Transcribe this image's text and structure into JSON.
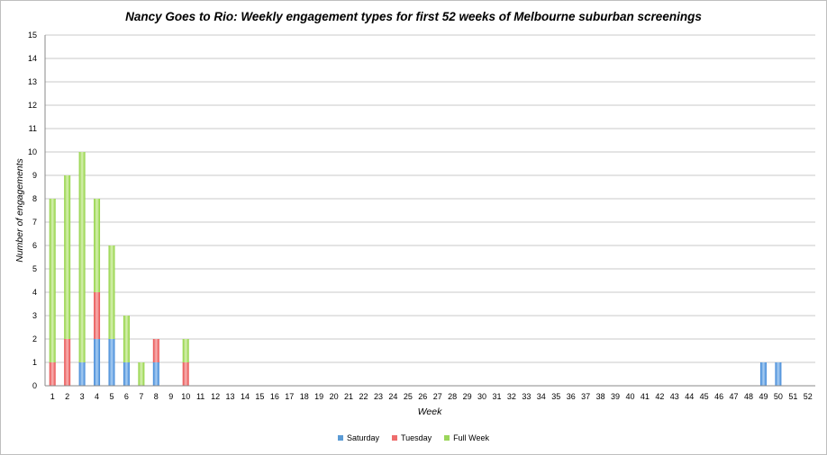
{
  "chart_data": {
    "type": "bar",
    "stacked": true,
    "title": "Nancy Goes to Rio: Weekly engagement types for first 52 weeks of Melbourne suburban screenings",
    "xlabel": "Week",
    "ylabel": "Number of engagements",
    "ylim": [
      0,
      15
    ],
    "yticks": [
      "0",
      "1",
      "2",
      "3",
      "4",
      "5",
      "6",
      "7",
      "8",
      "9",
      "10",
      "11",
      "12",
      "13",
      "14",
      "15"
    ],
    "categories": [
      "1",
      "2",
      "3",
      "4",
      "5",
      "6",
      "7",
      "8",
      "9",
      "10",
      "11",
      "12",
      "13",
      "14",
      "15",
      "16",
      "17",
      "18",
      "19",
      "20",
      "21",
      "22",
      "23",
      "24",
      "25",
      "26",
      "27",
      "28",
      "29",
      "30",
      "31",
      "32",
      "33",
      "34",
      "35",
      "36",
      "37",
      "38",
      "39",
      "40",
      "41",
      "42",
      "43",
      "44",
      "45",
      "46",
      "47",
      "48",
      "49",
      "50",
      "51",
      "52"
    ],
    "grid": true,
    "legend_position": "bottom",
    "series": [
      {
        "name": "Saturday",
        "color": "#5b9bd5",
        "values": [
          0,
          0,
          1,
          2,
          2,
          1,
          0,
          1,
          0,
          0,
          0,
          0,
          0,
          0,
          0,
          0,
          0,
          0,
          0,
          0,
          0,
          0,
          0,
          0,
          0,
          0,
          0,
          0,
          0,
          0,
          0,
          0,
          0,
          0,
          0,
          0,
          0,
          0,
          0,
          0,
          0,
          0,
          0,
          0,
          0,
          0,
          0,
          0,
          1,
          1,
          0,
          0
        ]
      },
      {
        "name": "Tuesday",
        "color": "#ee6d6d",
        "values": [
          1,
          2,
          0,
          2,
          0,
          0,
          0,
          1,
          0,
          1,
          0,
          0,
          0,
          0,
          0,
          0,
          0,
          0,
          0,
          0,
          0,
          0,
          0,
          0,
          0,
          0,
          0,
          0,
          0,
          0,
          0,
          0,
          0,
          0,
          0,
          0,
          0,
          0,
          0,
          0,
          0,
          0,
          0,
          0,
          0,
          0,
          0,
          0,
          0,
          0,
          0,
          0
        ]
      },
      {
        "name": "Full Week",
        "color": "#9bd65b",
        "values": [
          7,
          7,
          9,
          4,
          4,
          2,
          1,
          0,
          0,
          1,
          0,
          0,
          0,
          0,
          0,
          0,
          0,
          0,
          0,
          0,
          0,
          0,
          0,
          0,
          0,
          0,
          0,
          0,
          0,
          0,
          0,
          0,
          0,
          0,
          0,
          0,
          0,
          0,
          0,
          0,
          0,
          0,
          0,
          0,
          0,
          0,
          0,
          0,
          0,
          0,
          0,
          0
        ]
      }
    ]
  }
}
